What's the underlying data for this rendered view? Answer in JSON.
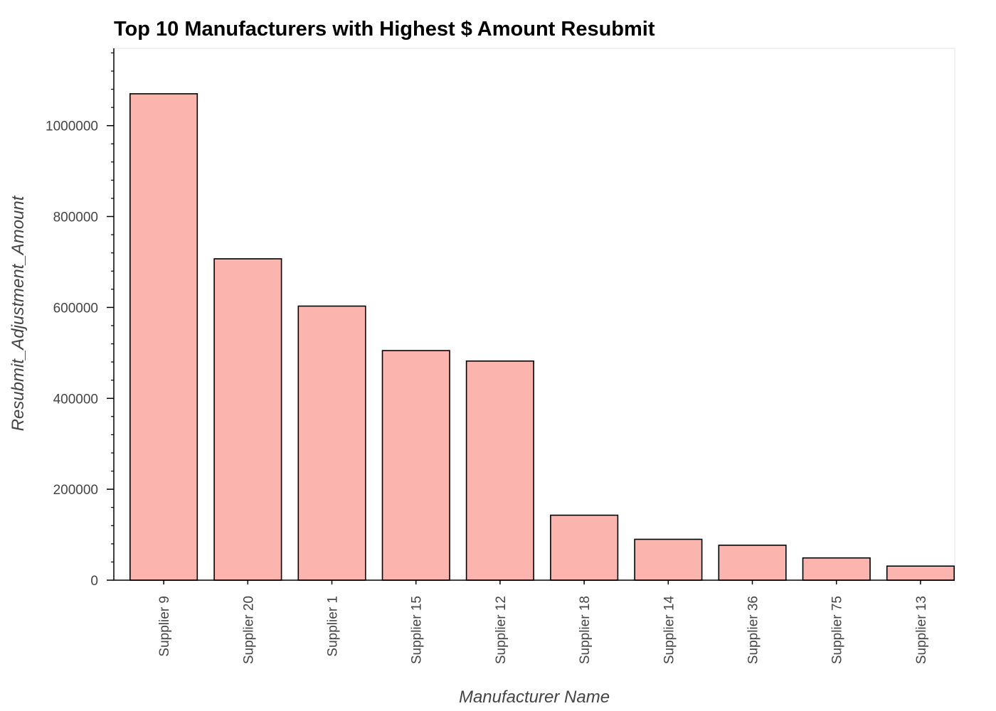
{
  "chart_data": {
    "type": "bar",
    "title": "Top 10 Manufacturers with Highest $ Amount Resubmit",
    "xlabel": "Manufacturer Name",
    "ylabel": "Resubmit_Adjustment_Amount",
    "categories": [
      "Supplier 9",
      "Supplier 20",
      "Supplier 1",
      "Supplier 15",
      "Supplier 12",
      "Supplier 18",
      "Supplier 14",
      "Supplier 36",
      "Supplier 75",
      "Supplier 13"
    ],
    "values": [
      1070000,
      707000,
      603000,
      505000,
      482000,
      143000,
      90000,
      77000,
      49000,
      31000
    ],
    "ylim": [
      0,
      1170000
    ],
    "yticks": [
      0,
      200000,
      400000,
      600000,
      800000,
      1000000
    ],
    "ytick_labels": [
      "0",
      "200000",
      "400000",
      "600000",
      "800000",
      "1000000"
    ],
    "bar_color": "#fbb4ae",
    "bar_edge_color": "#000000",
    "grid": false,
    "legend": "none"
  }
}
